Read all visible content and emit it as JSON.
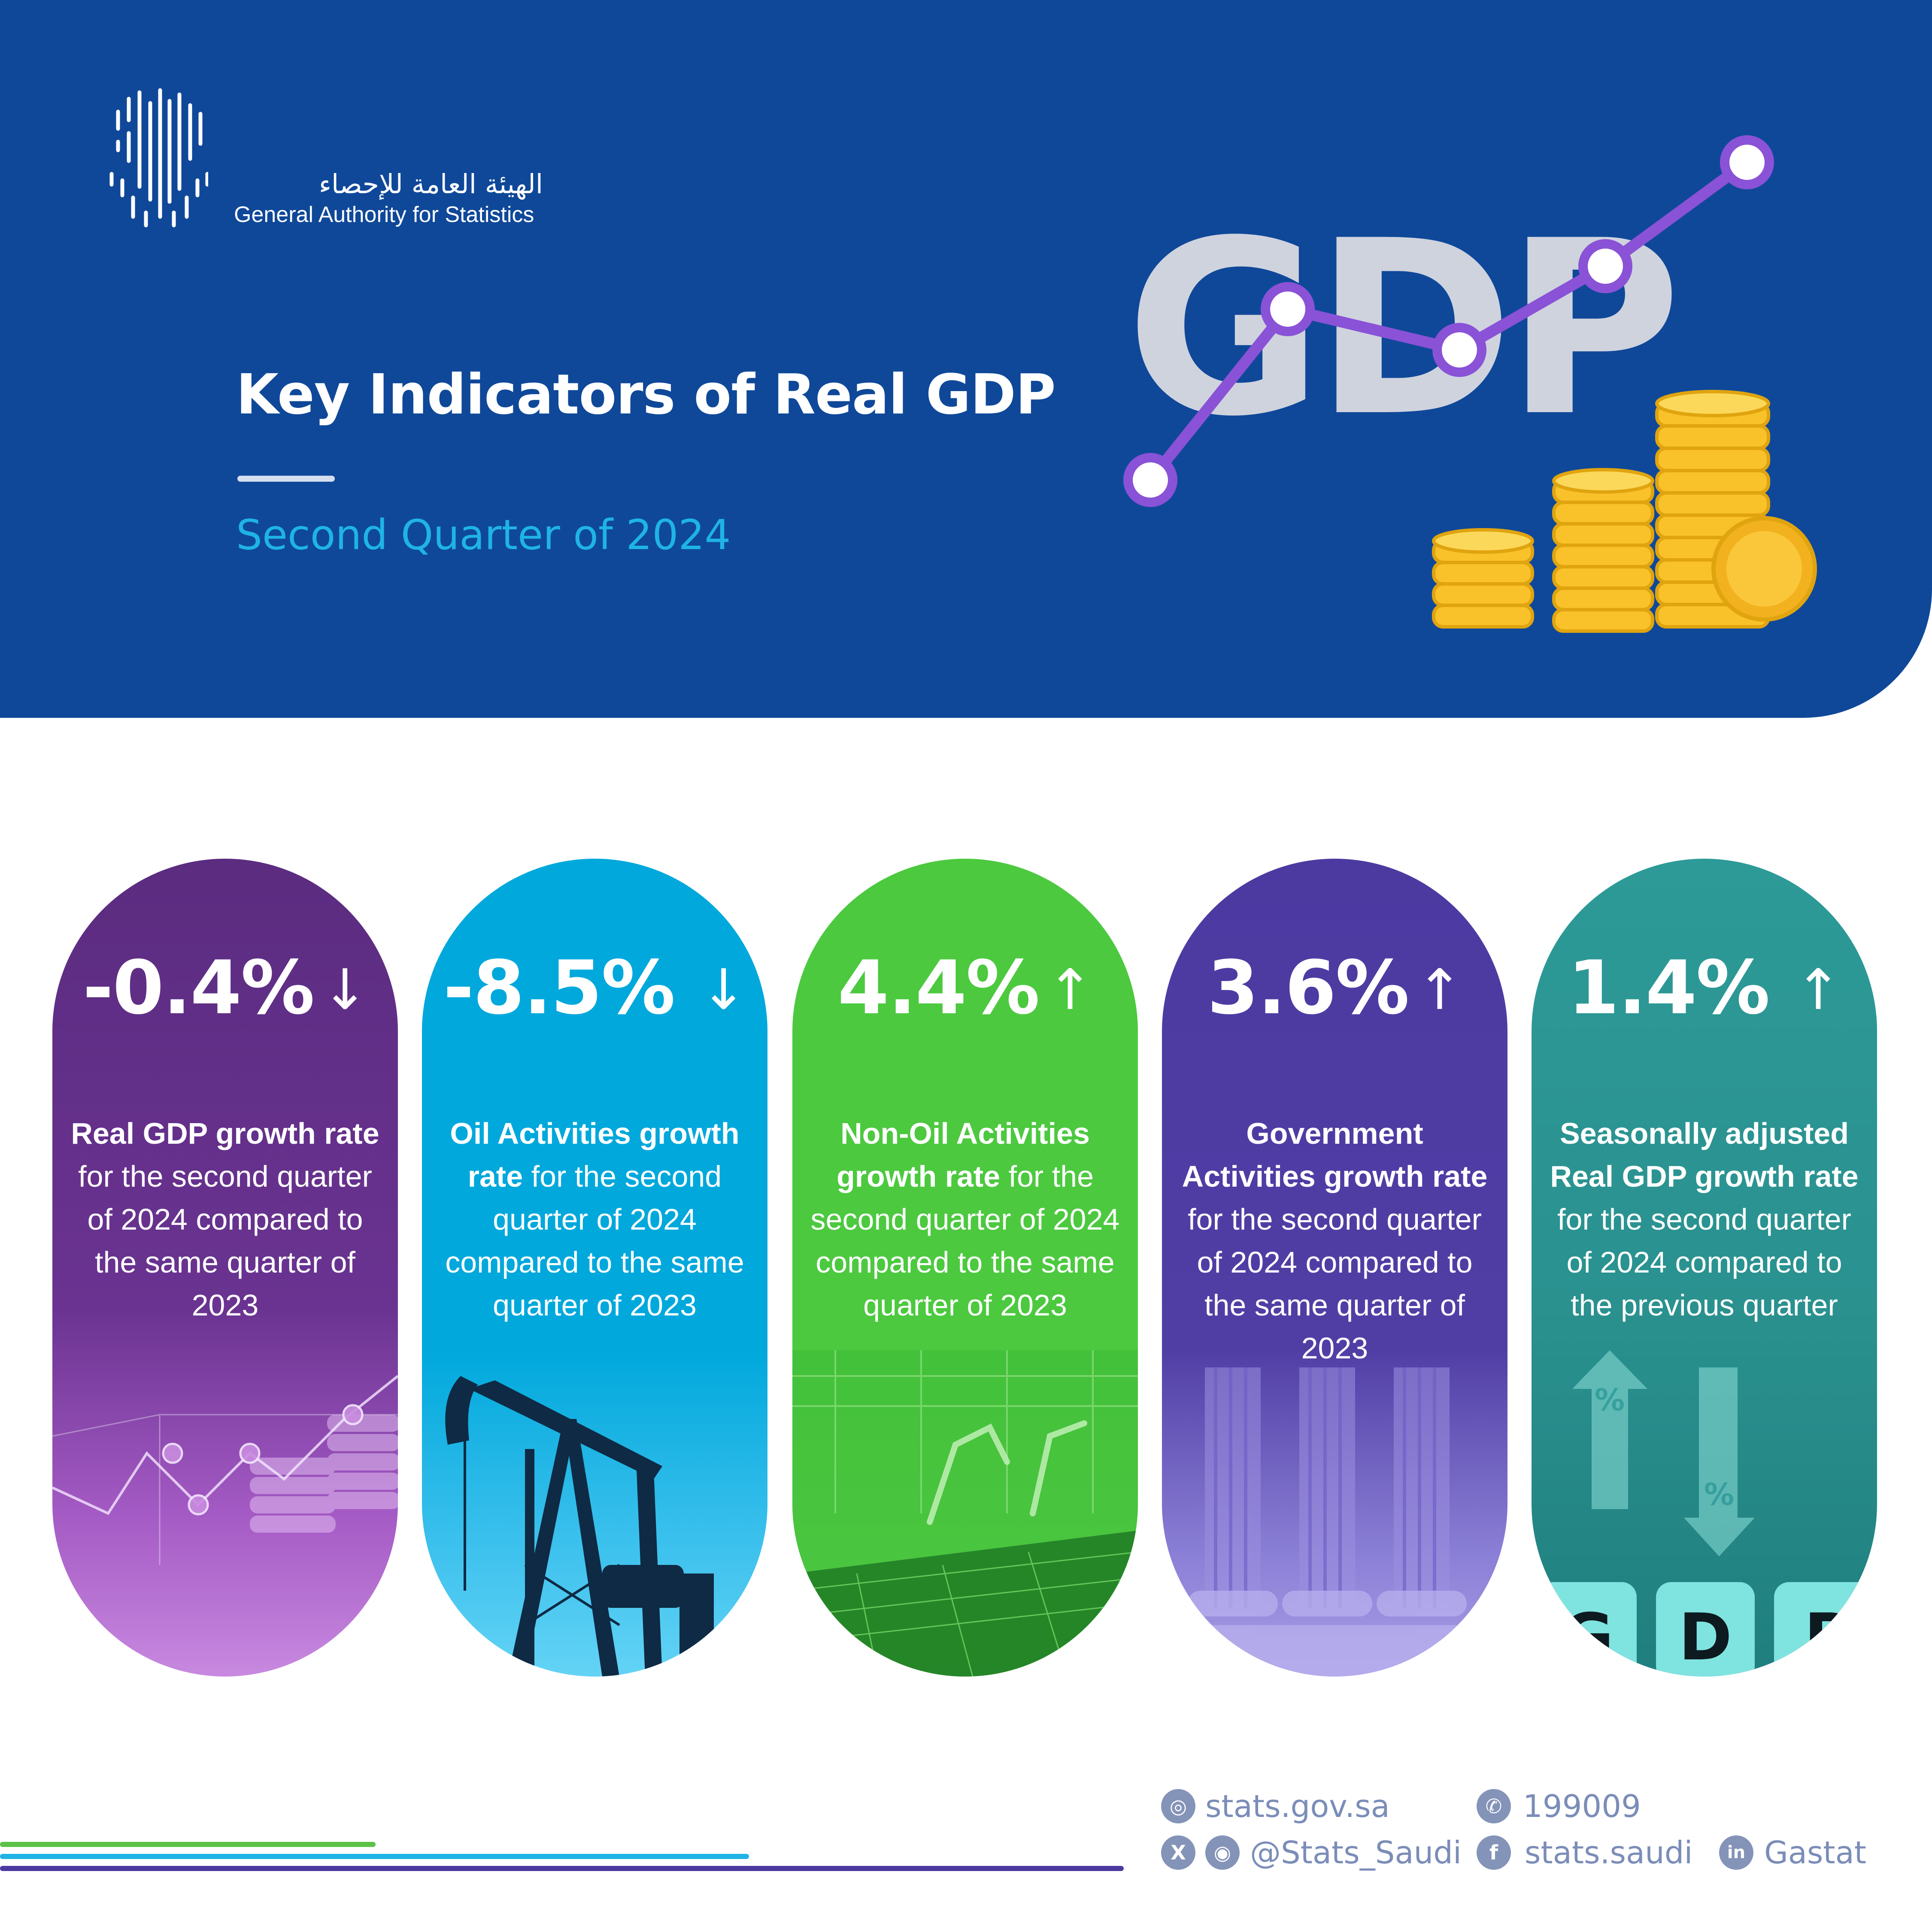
{
  "header": {
    "logo_ar": "الهيئة العامة للإحصاء",
    "logo_en": "General Authority for Statistics",
    "title": "Key Indicators of Real GDP",
    "subtitle": "Second Quarter of 2024",
    "art_word": "GDP"
  },
  "cards": [
    {
      "value": "-0.4%",
      "arrow": "↓",
      "desc_bold": "Real GDP growth rate",
      "desc_rest": " for the second quarter of 2024 compared to the same quarter of 2023"
    },
    {
      "value": "-8.5%",
      "arrow": "↓",
      "desc_bold": "Oil Activities growth rate",
      "desc_rest": " for the second quarter of 2024 compared to the same quarter of 2023"
    },
    {
      "value": "4.4%",
      "arrow": "↑",
      "desc_bold": "Non-Oil Activities growth rate",
      "desc_rest": " for the second quarter of 2024 compared to the same quarter of 2023"
    },
    {
      "value": "3.6%",
      "arrow": "↑",
      "desc_bold": "Government Activities growth rate",
      "desc_rest": " for the second quarter of 2024 compared to the same quarter of 2023"
    },
    {
      "value": "1.4%",
      "arrow": "↑",
      "desc_bold": "Seasonally adjusted Real GDP growth rate",
      "desc_rest": " for the second quarter of 2024 compared to the previous quarter"
    }
  ],
  "card5_art": {
    "percent_up": "%",
    "percent_down": "%",
    "cube_g": "G",
    "cube_d": "D",
    "cube_p": "P"
  },
  "colors": {
    "header": "#0f4899",
    "card1": "#5b2c80",
    "card2": "#00a8dc",
    "card3": "#4cc93f",
    "card4": "#4c3aa1",
    "card5": "#2d9a98"
  },
  "footer": {
    "website": "stats.gov.sa",
    "phone": "199009",
    "social_handle": "@Stats_Saudi",
    "facebook": "stats.saudi",
    "linkedin": "Gastat",
    "icons": {
      "website": "globe-icon",
      "phone": "phone-icon",
      "x": "x-icon",
      "instagram": "instagram-icon",
      "facebook": "facebook-icon",
      "linkedin": "linkedin-icon"
    }
  }
}
